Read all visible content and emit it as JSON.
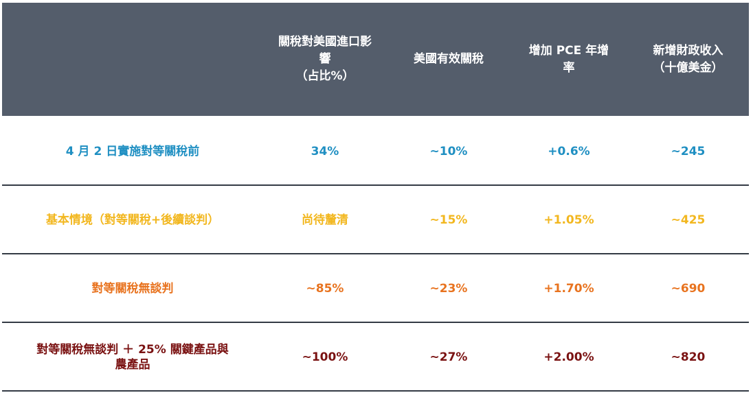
{
  "header": {
    "columns": [
      "",
      "關稅對美國進口影\n響\n（占比%）",
      "美國有效關稅",
      "增加 PCE 年增\n率",
      "新增財政收入\n（十億美金）"
    ]
  },
  "colors": {
    "header_bg": "#545d6b",
    "row_1": "#1f8fc2",
    "row_2": "#f2b71f",
    "row_3": "#e8731f",
    "row_4": "#7a1212",
    "rule": "#333a44"
  },
  "rows": [
    {
      "scenario": "4 月 2 日實施對等關稅前",
      "import_share": "34%",
      "effective_tariff": "~10%",
      "pce_increase": "+0.6%",
      "fiscal_revenue": "~245"
    },
    {
      "scenario": "基本情境（對等關稅+後續談判）",
      "import_share": "尚待釐清",
      "effective_tariff": "~15%",
      "pce_increase": "+1.05%",
      "fiscal_revenue": "~425"
    },
    {
      "scenario": "對等關稅無談判",
      "import_share": "~85%",
      "effective_tariff": "~23%",
      "pce_increase": "+1.70%",
      "fiscal_revenue": "~690"
    },
    {
      "scenario": "對等關稅無談判 ＋ 25% 關鍵產品與\n農產品",
      "import_share": "~100%",
      "effective_tariff": "~27%",
      "pce_increase": "+2.00%",
      "fiscal_revenue": "~820"
    }
  ]
}
